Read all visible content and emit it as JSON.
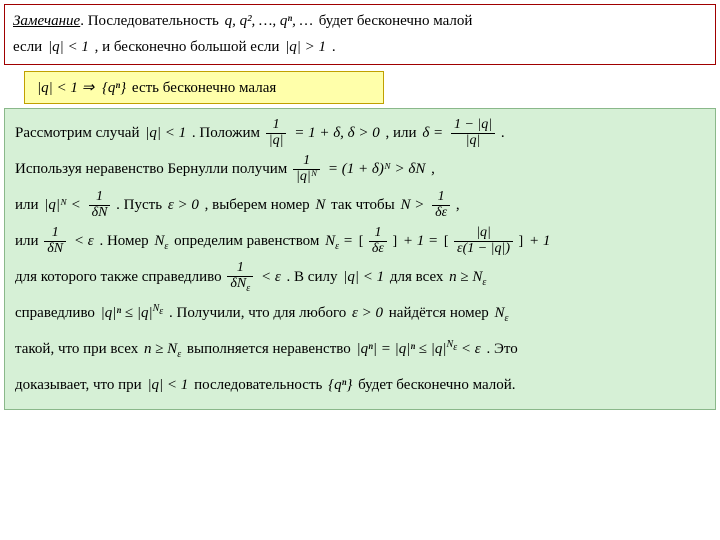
{
  "top": {
    "remark_label": "Замечание",
    "t1": ". Последовательность ",
    "seq": "q, q², …, qⁿ, …",
    "t2": " будет бесконечно малой",
    "t3": "если ",
    "cond1": "|q| < 1",
    "t4": " , и бесконечно большой если ",
    "cond2": "|q| > 1",
    "t5": " ."
  },
  "yellow": {
    "y1": "|q| < 1 ⇒",
    "y2": "{qⁿ}",
    "y3": " есть бесконечно малая"
  },
  "proof": {
    "l1a": "Рассмотрим случай ",
    "l1b": "|q| < 1",
    "l1c": " . Положим ",
    "l1d_lhs_num": "1",
    "l1d_lhs_den": "|q|",
    "l1d_mid": " = 1 + δ,  δ > 0",
    "l1e": " , или ",
    "l1f_pre": "δ = ",
    "l1f_num": "1 − |q|",
    "l1f_den": "|q|",
    "l1g": " .",
    "l2a": "Используя неравенство Бернулли получим ",
    "l2_lhs_num": "1",
    "l2_lhs_den": "|q|ᴺ",
    "l2_mid": " = (1 + δ)ᴺ > δN",
    "l2b": " ,",
    "l3a": "или ",
    "l3_pre": "|q|ᴺ < ",
    "l3_num": "1",
    "l3_den": "δN",
    "l3b": " . Пусть ",
    "l3c": "ε > 0",
    "l3d": " ,   выберем  номер ",
    "l3e": "N",
    "l3f": "  так чтобы  ",
    "l3g_pre": "N > ",
    "l3g_num": "1",
    "l3g_den": "δε",
    "l3h": " ,",
    "l4a": "или ",
    "l4_num": "1",
    "l4_den": "δN",
    "l4_mid": " < ε",
    "l4b": " . Номер ",
    "l4c": "N",
    "l4c_sub": "ε",
    "l4d": "  определим равенством  ",
    "l4e_pre": "N",
    "l4e_sub": "ε",
    "l4e_mid": " = ",
    "l4e_b1_num": "1",
    "l4e_b1_den": "δε",
    "l4e_plus1": " + 1 = ",
    "l4e_b2_num": "|q|",
    "l4e_b2_den": "ε(1 − |q|)",
    "l4e_plus2": " + 1",
    "l5a": "для которого также справедливо ",
    "l5_num": "1",
    "l5_den": "δN",
    "l5_sub": "ε",
    "l5_mid": " < ε",
    "l5b": " . В силу ",
    "l5c": "|q| < 1",
    "l5d": "    для всех ",
    "l5e": "n ≥ N",
    "l5e_sub": "ε",
    "l6a": "справедливо ",
    "l6b": "|q|ⁿ ≤ |q|",
    "l6b_sup": "N",
    "l6b_sub": "ε",
    "l6c": " . Получили, что для любого ",
    "l6d": "ε > 0",
    "l6e": "   найдётся номер  ",
    "l6f": "N",
    "l6f_sub": "ε",
    "l7a": "такой, что при всех ",
    "l7b": "n ≥ N",
    "l7b_sub": "ε",
    "l7c": "  выполняется  неравенство ",
    "l7d": "|qⁿ| = |q|ⁿ ≤ |q|",
    "l7d_sup": "N",
    "l7d_sub": "ε",
    "l7d_tail": " < ε",
    "l7e": "  . Это",
    "l8a": "доказывает, что при ",
    "l8b": "|q| < 1",
    "l8c": "  последовательность ",
    "l8d": "{qⁿ}",
    "l8e": "  будет бесконечно малой."
  },
  "colors": {
    "top_border": "#a00000",
    "yellow_bg": "#ffffaa",
    "green_bg": "#d6f0d6"
  }
}
